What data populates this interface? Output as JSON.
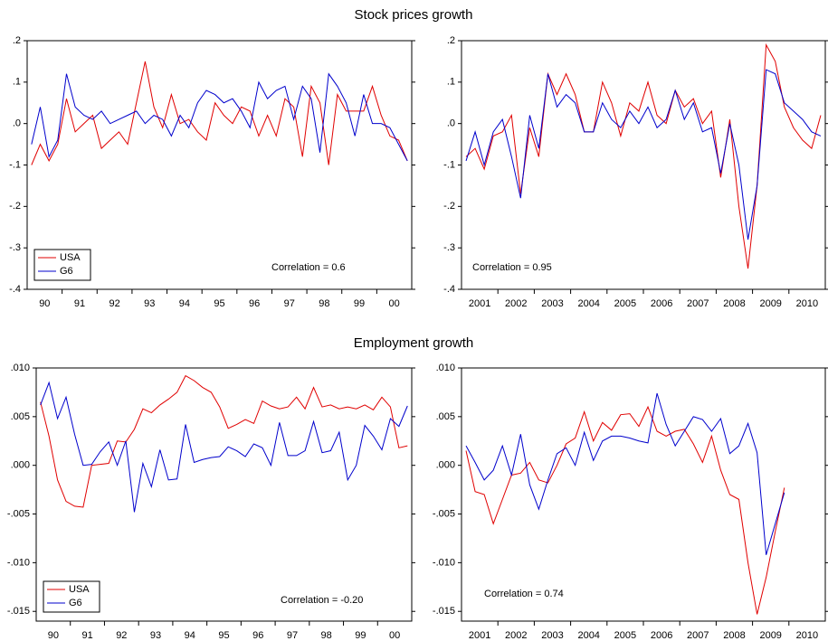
{
  "chart_data": [
    {
      "type": "line",
      "title": "Stock prices growth",
      "categories": [
        "90",
        null,
        null,
        null,
        "91",
        null,
        null,
        null,
        "92",
        null,
        null,
        null,
        "93",
        null,
        null,
        null,
        "94",
        null,
        null,
        null,
        "95",
        null,
        null,
        null,
        "96",
        null,
        null,
        null,
        "97",
        null,
        null,
        null,
        "98",
        null,
        null,
        null,
        "99",
        null,
        null,
        null,
        "00",
        null,
        null,
        null
      ],
      "series": [
        {
          "name": "USA",
          "color": "#e00000",
          "values": [
            -0.1,
            -0.05,
            -0.09,
            -0.05,
            0.06,
            -0.02,
            0.0,
            0.02,
            -0.06,
            -0.04,
            -0.02,
            -0.05,
            0.05,
            0.15,
            0.04,
            -0.01,
            0.07,
            0.0,
            0.01,
            -0.02,
            -0.04,
            0.05,
            0.02,
            0.0,
            0.04,
            0.03,
            -0.03,
            0.02,
            -0.03,
            0.06,
            0.04,
            -0.08,
            0.09,
            0.05,
            -0.1,
            0.07,
            0.03,
            0.03,
            0.03,
            0.09,
            0.02,
            -0.03,
            -0.04,
            -0.09
          ]
        },
        {
          "name": "G6",
          "color": "#0000cc",
          "values": [
            -0.05,
            0.04,
            -0.08,
            -0.04,
            0.12,
            0.04,
            0.02,
            0.01,
            0.03,
            0.0,
            0.01,
            0.02,
            0.03,
            0.0,
            0.02,
            0.01,
            -0.03,
            0.02,
            -0.01,
            0.05,
            0.08,
            0.07,
            0.05,
            0.06,
            0.03,
            -0.01,
            0.1,
            0.06,
            0.08,
            0.09,
            0.01,
            0.09,
            0.06,
            -0.07,
            0.12,
            0.09,
            0.05,
            -0.03,
            0.07,
            0.0,
            0.0,
            -0.01,
            -0.05,
            -0.09
          ]
        }
      ],
      "ylim": [
        -0.4,
        0.2
      ],
      "yticks": [
        {
          "value": 0.2,
          "label": ".2"
        },
        {
          "value": 0.1,
          "label": ".1"
        },
        {
          "value": 0,
          "label": ".0"
        },
        {
          "value": -0.1,
          "label": "-.1"
        },
        {
          "value": -0.2,
          "label": "-.2"
        },
        {
          "value": -0.3,
          "label": "-.3"
        },
        {
          "value": -0.4,
          "label": "-.4"
        }
      ],
      "legend": true,
      "annotation": "Correlation = 0.6"
    },
    {
      "type": "line",
      "categories": [
        "2001",
        null,
        null,
        null,
        "2002",
        null,
        null,
        null,
        "2003",
        null,
        null,
        null,
        "2004",
        null,
        null,
        null,
        "2005",
        null,
        null,
        null,
        "2006",
        null,
        null,
        null,
        "2007",
        null,
        null,
        null,
        "2008",
        null,
        null,
        null,
        "2009",
        null,
        null,
        null,
        "2010",
        null,
        null,
        null
      ],
      "series": [
        {
          "name": "USA",
          "color": "#e00000",
          "values": [
            -0.08,
            -0.06,
            -0.11,
            -0.03,
            -0.02,
            0.02,
            -0.17,
            -0.01,
            -0.08,
            0.12,
            0.07,
            0.12,
            0.07,
            -0.02,
            -0.02,
            0.1,
            0.05,
            -0.03,
            0.05,
            0.03,
            0.1,
            0.02,
            0.0,
            0.08,
            0.04,
            0.06,
            0.0,
            0.03,
            -0.13,
            0.01,
            -0.2,
            -0.35,
            -0.15,
            0.19,
            0.15,
            0.04,
            -0.01,
            -0.04,
            -0.06,
            0.02
          ]
        },
        {
          "name": "G6",
          "color": "#0000cc",
          "values": [
            -0.09,
            -0.02,
            -0.1,
            -0.02,
            0.01,
            -0.08,
            -0.18,
            0.02,
            -0.06,
            0.12,
            0.04,
            0.07,
            0.05,
            -0.02,
            -0.02,
            0.05,
            0.01,
            -0.01,
            0.03,
            0.0,
            0.04,
            -0.01,
            0.01,
            0.08,
            0.01,
            0.05,
            -0.02,
            -0.01,
            -0.12,
            0.0,
            -0.1,
            -0.28,
            -0.15,
            0.13,
            0.12,
            0.05,
            0.03,
            0.01,
            -0.02,
            -0.03
          ]
        }
      ],
      "ylim": [
        -0.4,
        0.2
      ],
      "yticks": [
        {
          "value": 0.2,
          "label": ".2"
        },
        {
          "value": 0.1,
          "label": ".1"
        },
        {
          "value": 0,
          "label": ".0"
        },
        {
          "value": -0.1,
          "label": "-.1"
        },
        {
          "value": -0.2,
          "label": "-.2"
        },
        {
          "value": -0.3,
          "label": "-.3"
        },
        {
          "value": -0.4,
          "label": "-.4"
        }
      ],
      "legend": false,
      "annotation": "Correlation = 0.95"
    },
    {
      "type": "line",
      "title": "Employment growth",
      "categories": [
        "90",
        null,
        null,
        null,
        "91",
        null,
        null,
        null,
        "92",
        null,
        null,
        null,
        "93",
        null,
        null,
        null,
        "94",
        null,
        null,
        null,
        "95",
        null,
        null,
        null,
        "96",
        null,
        null,
        null,
        "97",
        null,
        null,
        null,
        "98",
        null,
        null,
        null,
        "99",
        null,
        null,
        null,
        "00",
        null,
        null,
        null
      ],
      "series": [
        {
          "name": "USA",
          "color": "#e00000",
          "values": [
            0.0065,
            0.003,
            -0.0015,
            -0.0037,
            -0.0042,
            -0.0043,
            0.0,
            0.0001,
            0.0002,
            0.0025,
            0.0024,
            0.0037,
            0.0058,
            0.0054,
            0.0062,
            0.0068,
            0.0075,
            0.0092,
            0.0087,
            0.008,
            0.0075,
            0.006,
            0.0038,
            0.0042,
            0.0047,
            0.0043,
            0.0066,
            0.0061,
            0.0058,
            0.006,
            0.007,
            0.0058,
            0.008,
            0.006,
            0.0062,
            0.0058,
            0.006,
            0.0058,
            0.0062,
            0.0057,
            0.007,
            0.006,
            0.0018,
            0.002
          ]
        },
        {
          "name": "G6",
          "color": "#0000cc",
          "values": [
            0.0062,
            0.0085,
            0.0048,
            0.007,
            0.0032,
            0.0,
            0.0001,
            0.0014,
            0.0024,
            0.0,
            0.0025,
            -0.0048,
            0.0002,
            -0.0022,
            0.0016,
            -0.0015,
            -0.0014,
            0.0042,
            0.0003,
            0.0006,
            0.0008,
            0.0009,
            0.0019,
            0.0015,
            0.0009,
            0.0022,
            0.0018,
            0.0,
            0.0044,
            0.001,
            0.001,
            0.0015,
            0.0045,
            0.0013,
            0.0015,
            0.0034,
            -0.0015,
            0.0,
            0.0041,
            0.003,
            0.0016,
            0.0048,
            0.004,
            0.0061
          ]
        }
      ],
      "ylim": [
        -0.016,
        0.01
      ],
      "yticks": [
        {
          "value": 0.01,
          "label": ".010"
        },
        {
          "value": 0.005,
          "label": ".005"
        },
        {
          "value": 0,
          "label": ".000"
        },
        {
          "value": -0.005,
          "label": "-.005"
        },
        {
          "value": -0.01,
          "label": "-.010"
        },
        {
          "value": -0.015,
          "label": "-.015"
        }
      ],
      "legend": true,
      "annotation": "Correlation = -0.20"
    },
    {
      "type": "line",
      "categories": [
        "2001",
        null,
        null,
        null,
        "2002",
        null,
        null,
        null,
        "2003",
        null,
        null,
        null,
        "2004",
        null,
        null,
        null,
        "2005",
        null,
        null,
        null,
        "2006",
        null,
        null,
        null,
        "2007",
        null,
        null,
        null,
        "2008",
        null,
        null,
        null,
        "2009",
        null,
        null,
        null,
        "2010",
        null,
        null,
        null
      ],
      "series": [
        {
          "name": "USA",
          "color": "#e00000",
          "values": [
            0.0015,
            -0.0027,
            -0.003,
            -0.006,
            -0.0035,
            -0.001,
            -0.0008,
            0.0003,
            -0.0015,
            -0.0018,
            0.0,
            0.0022,
            0.0028,
            0.0055,
            0.0025,
            0.0044,
            0.0036,
            0.0052,
            0.0053,
            0.004,
            0.006,
            0.0035,
            0.003,
            0.0035,
            0.0037,
            0.0022,
            0.0003,
            0.003,
            -0.0005,
            -0.003,
            -0.0035,
            -0.01,
            -0.0153,
            -0.0115,
            -0.0068,
            -0.0023,
            null,
            null,
            null,
            null
          ]
        },
        {
          "name": "G6",
          "color": "#0000cc",
          "values": [
            0.002,
            0.0003,
            -0.0015,
            -0.0005,
            0.002,
            -0.001,
            0.0032,
            -0.002,
            -0.0045,
            -0.0015,
            0.0012,
            0.0018,
            0.0,
            0.0034,
            0.0005,
            0.0025,
            0.003,
            0.003,
            0.0028,
            0.0025,
            0.0023,
            0.0074,
            0.0042,
            0.002,
            0.0035,
            0.005,
            0.0047,
            0.0035,
            0.0048,
            0.0012,
            0.002,
            0.0043,
            0.0013,
            -0.0092,
            -0.006,
            -0.0028,
            null,
            null,
            null,
            null
          ]
        }
      ],
      "ylim": [
        -0.016,
        0.01
      ],
      "yticks": [
        {
          "value": 0.01,
          "label": ".010"
        },
        {
          "value": 0.005,
          "label": ".005"
        },
        {
          "value": 0,
          "label": ".000"
        },
        {
          "value": -0.005,
          "label": "-.005"
        },
        {
          "value": -0.01,
          "label": "-.010"
        },
        {
          "value": -0.015,
          "label": "-.015"
        }
      ],
      "legend": false,
      "annotation": "Correlation = 0.74"
    }
  ]
}
